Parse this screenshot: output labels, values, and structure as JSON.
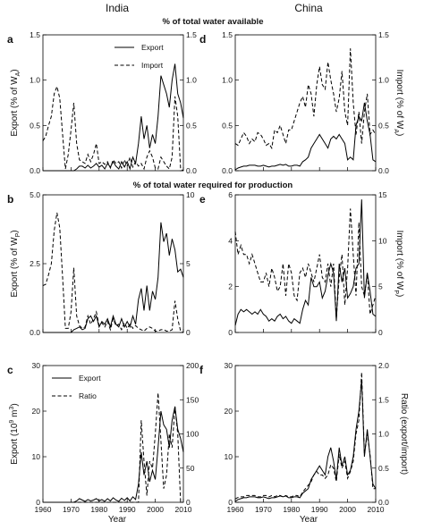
{
  "headers": {
    "left": "India",
    "right": "China"
  },
  "sections": {
    "top": "% of total water available",
    "middle": "% of total water required for production"
  },
  "x_axis": {
    "label": "Year",
    "ticks": [
      "1960",
      "1970",
      "1980",
      "1990",
      "2000",
      "2010"
    ]
  },
  "chart_data": [
    {
      "id": "a",
      "panel_label": "a",
      "type": "line",
      "ylabel": "Export (% of W_A)",
      "ylim": [
        0,
        1.5
      ],
      "yticks": [
        "0.0",
        "0.5",
        "1.0",
        "1.5"
      ],
      "y2lim": null,
      "y2ticks": null,
      "legend": [
        "Export",
        "Import"
      ],
      "x": [
        1960,
        1961,
        1962,
        1963,
        1964,
        1965,
        1966,
        1967,
        1968,
        1969,
        1970,
        1971,
        1972,
        1973,
        1974,
        1975,
        1976,
        1977,
        1978,
        1979,
        1980,
        1981,
        1982,
        1983,
        1984,
        1985,
        1986,
        1987,
        1988,
        1989,
        1990,
        1991,
        1992,
        1993,
        1994,
        1995,
        1996,
        1997,
        1998,
        1999,
        2000,
        2001,
        2002,
        2003,
        2004,
        2005,
        2006,
        2007,
        2008,
        2009,
        2010
      ],
      "series": [
        {
          "name": "Export",
          "axis": "left",
          "style": "solid",
          "values": [
            0,
            0,
            0,
            0,
            0,
            0,
            0,
            0,
            0,
            0,
            0,
            0,
            0.02,
            0.05,
            0.05,
            0.03,
            0.06,
            0.03,
            0.05,
            0.08,
            0.04,
            0.06,
            0.02,
            0.08,
            0.04,
            0.1,
            0.05,
            0.02,
            0.1,
            0.04,
            0.1,
            0.02,
            0.15,
            0.08,
            0.3,
            0.6,
            0.35,
            0.5,
            0.25,
            0.4,
            0.3,
            0.6,
            1.05,
            0.95,
            0.85,
            0.7,
            1.0,
            1.18,
            0.85,
            0.75,
            0.58
          ]
        },
        {
          "name": "Import",
          "axis": "left",
          "style": "dash",
          "values": [
            0.33,
            0.38,
            0.5,
            0.6,
            0.85,
            0.93,
            0.8,
            0.4,
            0.02,
            0.18,
            0.45,
            0.75,
            0.3,
            0.12,
            0.1,
            0.08,
            0.18,
            0.1,
            0.18,
            0.3,
            0.08,
            0.1,
            0.07,
            0.1,
            0.03,
            0.12,
            0.08,
            0.1,
            0.03,
            0.12,
            0.05,
            0.15,
            0.04,
            0.1,
            0.05,
            0.08,
            0.02,
            0.15,
            0.22,
            0.15,
            0.03,
            0.02,
            0.15,
            0.1,
            0.05,
            0.02,
            0.15,
            0.82,
            0.6,
            0.02,
            0.0
          ]
        }
      ]
    },
    {
      "id": "d",
      "panel_label": "d",
      "type": "line",
      "ylabel": "Import (% of W_A)",
      "ylim": [
        0,
        1.5
      ],
      "yticks": [
        "0.0",
        "0.5",
        "1.0",
        "1.5"
      ],
      "y2lim": null,
      "y2ticks": null,
      "legend": [],
      "x": [
        1960,
        1961,
        1962,
        1963,
        1964,
        1965,
        1966,
        1967,
        1968,
        1969,
        1970,
        1971,
        1972,
        1973,
        1974,
        1975,
        1976,
        1977,
        1978,
        1979,
        1980,
        1981,
        1982,
        1983,
        1984,
        1985,
        1986,
        1987,
        1988,
        1989,
        1990,
        1991,
        1992,
        1993,
        1994,
        1995,
        1996,
        1997,
        1998,
        1999,
        2000,
        2001,
        2002,
        2003,
        2004,
        2005,
        2006,
        2007,
        2008,
        2009,
        2010
      ],
      "series": [
        {
          "name": "",
          "axis": "left",
          "style": "solid",
          "values": [
            0.01,
            0.03,
            0.04,
            0.05,
            0.05,
            0.06,
            0.06,
            0.06,
            0.05,
            0.05,
            0.06,
            0.05,
            0.04,
            0.05,
            0.05,
            0.06,
            0.07,
            0.06,
            0.07,
            0.05,
            0.05,
            0.06,
            0.06,
            0.05,
            0.1,
            0.12,
            0.15,
            0.25,
            0.3,
            0.35,
            0.4,
            0.35,
            0.3,
            0.25,
            0.35,
            0.38,
            0.35,
            0.4,
            0.35,
            0.3,
            0.12,
            0.15,
            0.12,
            0.5,
            0.6,
            0.55,
            0.75,
            0.55,
            0.4,
            0.12,
            0.1
          ]
        },
        {
          "name": "",
          "axis": "left",
          "style": "dash",
          "values": [
            0.3,
            0.28,
            0.35,
            0.42,
            0.38,
            0.3,
            0.35,
            0.32,
            0.42,
            0.4,
            0.35,
            0.28,
            0.3,
            0.25,
            0.45,
            0.42,
            0.5,
            0.4,
            0.3,
            0.45,
            0.45,
            0.55,
            0.65,
            0.75,
            0.82,
            0.7,
            0.95,
            0.85,
            0.6,
            0.95,
            1.15,
            0.95,
            0.9,
            1.2,
            1.0,
            0.85,
            0.65,
            0.8,
            1.1,
            0.65,
            0.5,
            1.35,
            0.75,
            0.4,
            0.65,
            0.3,
            0.65,
            0.85,
            0.4,
            0.45,
            0.4
          ]
        }
      ]
    },
    {
      "id": "b",
      "panel_label": "b",
      "type": "line",
      "ylabel": "Export (% of W_P)",
      "ylim": [
        0,
        5
      ],
      "yticks": [
        "0.0",
        "2.5",
        "5.0"
      ],
      "y2lim": [
        0,
        10
      ],
      "y2ticks": [
        "0",
        "5",
        "10"
      ],
      "legend": [],
      "x": [
        1960,
        1961,
        1962,
        1963,
        1964,
        1965,
        1966,
        1967,
        1968,
        1969,
        1970,
        1971,
        1972,
        1973,
        1974,
        1975,
        1976,
        1977,
        1978,
        1979,
        1980,
        1981,
        1982,
        1983,
        1984,
        1985,
        1986,
        1987,
        1988,
        1989,
        1990,
        1991,
        1992,
        1993,
        1994,
        1995,
        1996,
        1997,
        1998,
        1999,
        2000,
        2001,
        2002,
        2003,
        2004,
        2005,
        2006,
        2007,
        2008,
        2009,
        2010
      ],
      "series": [
        {
          "name": "",
          "axis": "left",
          "style": "solid",
          "values": [
            0,
            0,
            0,
            0,
            0,
            0,
            0,
            0,
            0,
            0,
            0,
            0.1,
            0.15,
            0.2,
            0.1,
            0.15,
            0.5,
            0.6,
            0.4,
            0.6,
            0.2,
            0.4,
            0.3,
            0.5,
            0.2,
            0.6,
            0.3,
            0.2,
            0.5,
            0.2,
            0.4,
            0.2,
            0.6,
            0.3,
            1.2,
            1.6,
            0.8,
            1.7,
            0.8,
            1.5,
            1.2,
            2.0,
            4.0,
            3.3,
            3.6,
            2.8,
            3.4,
            3.0,
            2.2,
            2.3,
            2.0
          ]
        },
        {
          "name": "",
          "axis": "right",
          "style": "dash",
          "values": [
            3.4,
            3.5,
            4.2,
            5.0,
            7.4,
            8.7,
            7.6,
            4.0,
            0.3,
            0.3,
            1.5,
            4.7,
            1.2,
            0.5,
            0.3,
            0.4,
            1.2,
            0.6,
            1.0,
            1.5,
            0.5,
            0.7,
            0.4,
            0.8,
            0.2,
            1.0,
            0.5,
            0.6,
            0.2,
            0.7,
            0.3,
            0.6,
            0.3,
            0.5,
            0.3,
            0.2,
            0.1,
            0.3,
            0.4,
            0.3,
            0.1,
            0.1,
            0.2,
            0.2,
            0.1,
            0.1,
            0.2,
            2.3,
            1.0,
            0.1,
            0.0
          ]
        }
      ]
    },
    {
      "id": "e",
      "panel_label": "e",
      "type": "line",
      "ylabel": "Import (% of W_P)",
      "ylim": [
        0,
        6
      ],
      "yticks": [
        "0",
        "2",
        "4",
        "6"
      ],
      "y2lim": [
        0,
        15
      ],
      "y2ticks": [
        "0",
        "5",
        "10",
        "15"
      ],
      "legend": [],
      "x": [
        1960,
        1961,
        1962,
        1963,
        1964,
        1965,
        1966,
        1967,
        1968,
        1969,
        1970,
        1971,
        1972,
        1973,
        1974,
        1975,
        1976,
        1977,
        1978,
        1979,
        1980,
        1981,
        1982,
        1983,
        1984,
        1985,
        1986,
        1987,
        1988,
        1989,
        1990,
        1991,
        1992,
        1993,
        1994,
        1995,
        1996,
        1997,
        1998,
        1999,
        2000,
        2001,
        2002,
        2003,
        2004,
        2005,
        2006,
        2007,
        2008,
        2009,
        2010
      ],
      "series": [
        {
          "name": "",
          "axis": "left",
          "style": "solid",
          "values": [
            0.3,
            0.8,
            1.0,
            0.9,
            1.0,
            0.9,
            0.8,
            0.9,
            0.8,
            1.0,
            0.8,
            0.7,
            0.5,
            0.6,
            0.5,
            0.7,
            0.8,
            0.6,
            0.7,
            0.5,
            0.4,
            0.6,
            0.5,
            0.4,
            1.0,
            1.4,
            1.2,
            2.4,
            2.0,
            2.0,
            2.2,
            1.5,
            1.8,
            2.5,
            3.0,
            2.6,
            0.5,
            3.0,
            2.2,
            2.8,
            1.5,
            1.7,
            2.0,
            2.8,
            3.0,
            5.8,
            1.5,
            2.6,
            1.8,
            0.8,
            0.7
          ]
        },
        {
          "name": "",
          "axis": "right",
          "style": "dash",
          "values": [
            11.0,
            8.5,
            9.5,
            8.5,
            8.5,
            7.5,
            8.5,
            7.5,
            6.5,
            5.5,
            5.5,
            6.5,
            5.0,
            7.0,
            6.0,
            4.5,
            5.0,
            7.5,
            4.0,
            7.5,
            6.5,
            4.0,
            3.5,
            6.5,
            7.0,
            6.0,
            7.5,
            6.5,
            5.5,
            7.0,
            8.5,
            6.0,
            5.5,
            7.5,
            5.0,
            7.5,
            1.5,
            6.0,
            8.5,
            3.0,
            7.0,
            13.5,
            8.5,
            4.0,
            12.0,
            5.0,
            4.0,
            6.5,
            2.0,
            3.0,
            4.0
          ]
        }
      ]
    },
    {
      "id": "c",
      "panel_label": "c",
      "type": "line",
      "ylabel": "Export (10^9 m^3)",
      "ylim": [
        0,
        30
      ],
      "yticks": [
        "0",
        "10",
        "20",
        "30"
      ],
      "y2lim": [
        0,
        200
      ],
      "y2ticks": [
        "0",
        "50",
        "100",
        "150",
        "200"
      ],
      "legend": [
        "Export",
        "Ratio"
      ],
      "x": [
        1960,
        1961,
        1962,
        1963,
        1964,
        1965,
        1966,
        1967,
        1968,
        1969,
        1970,
        1971,
        1972,
        1973,
        1974,
        1975,
        1976,
        1977,
        1978,
        1979,
        1980,
        1981,
        1982,
        1983,
        1984,
        1985,
        1986,
        1987,
        1988,
        1989,
        1990,
        1991,
        1992,
        1993,
        1994,
        1995,
        1996,
        1997,
        1998,
        1999,
        2000,
        2001,
        2002,
        2003,
        2004,
        2005,
        2006,
        2007,
        2008,
        2009,
        2010
      ],
      "series": [
        {
          "name": "Export",
          "axis": "left",
          "style": "solid",
          "values": [
            0,
            0,
            0,
            0,
            0,
            0,
            0,
            0,
            0,
            0,
            0,
            0,
            0.3,
            0.8,
            0.5,
            0.2,
            0.6,
            0.3,
            0.5,
            0.8,
            0.3,
            0.6,
            0.2,
            0.8,
            0.3,
            1.0,
            0.5,
            0.2,
            0.9,
            0.4,
            1.0,
            0.3,
            1.2,
            0.6,
            4.0,
            11.0,
            6.0,
            9.0,
            4.5,
            7.0,
            5.0,
            12.0,
            20.0,
            17.0,
            16.0,
            12.0,
            18.0,
            21.0,
            16.0,
            14.0,
            11.0
          ]
        },
        {
          "name": "Ratio",
          "axis": "right",
          "style": "dash",
          "values": [
            0,
            0,
            0,
            0,
            0,
            0,
            0,
            0,
            0,
            0,
            0,
            0,
            0,
            0,
            0,
            0,
            0,
            0,
            0,
            0,
            0,
            0,
            0,
            0,
            0,
            0,
            0,
            0,
            0,
            0,
            0,
            0,
            0,
            0,
            0,
            120,
            60,
            10,
            60,
            50,
            100,
            160,
            90,
            20,
            40,
            100,
            80,
            140,
            100,
            0,
            0
          ]
        }
      ]
    },
    {
      "id": "f",
      "panel_label": "f",
      "type": "line",
      "ylabel": "",
      "ylim": [
        0,
        30
      ],
      "yticks": [
        "0",
        "10",
        "20",
        "30"
      ],
      "y2label": "Ratio (export/import)",
      "y2lim": [
        0,
        2.0
      ],
      "y2ticks": [
        "0.0",
        "0.5",
        "1.0",
        "1.5",
        "2.0"
      ],
      "legend": [],
      "x": [
        1960,
        1961,
        1962,
        1963,
        1964,
        1965,
        1966,
        1967,
        1968,
        1969,
        1970,
        1971,
        1972,
        1973,
        1974,
        1975,
        1976,
        1977,
        1978,
        1979,
        1980,
        1981,
        1982,
        1983,
        1984,
        1985,
        1986,
        1987,
        1988,
        1989,
        1990,
        1991,
        1992,
        1993,
        1994,
        1995,
        1996,
        1997,
        1998,
        1999,
        2000,
        2001,
        2002,
        2003,
        2004,
        2005,
        2006,
        2007,
        2008,
        2009,
        2010
      ],
      "series": [
        {
          "name": "",
          "axis": "left",
          "style": "solid",
          "values": [
            0.2,
            0.6,
            0.8,
            1.0,
            1.0,
            1.2,
            1.2,
            1.2,
            1.0,
            1.0,
            1.2,
            1.0,
            0.8,
            1.0,
            1.0,
            1.2,
            1.4,
            1.2,
            1.4,
            1.0,
            1.0,
            1.2,
            1.2,
            1.0,
            2.0,
            2.5,
            3.0,
            5.0,
            6.0,
            7.0,
            8.0,
            7.0,
            6.0,
            10.0,
            12.0,
            9.0,
            5.0,
            12.0,
            8.0,
            10.0,
            6.0,
            7.0,
            10.0,
            16.0,
            20.0,
            27.0,
            10.0,
            16.0,
            10.0,
            4.0,
            3.0
          ]
        },
        {
          "name": "",
          "axis": "right",
          "style": "dash",
          "values": [
            0.05,
            0.07,
            0.08,
            0.08,
            0.1,
            0.1,
            0.1,
            0.1,
            0.08,
            0.08,
            0.1,
            0.1,
            0.08,
            0.1,
            0.08,
            0.1,
            0.1,
            0.08,
            0.1,
            0.08,
            0.08,
            0.1,
            0.1,
            0.08,
            0.15,
            0.2,
            0.25,
            0.3,
            0.4,
            0.45,
            0.4,
            0.4,
            0.35,
            0.4,
            0.55,
            0.5,
            0.3,
            0.7,
            0.5,
            0.6,
            0.35,
            0.45,
            0.6,
            1.0,
            1.2,
            1.9,
            0.7,
            1.0,
            0.7,
            0.2,
            0.2
          ]
        }
      ]
    }
  ]
}
